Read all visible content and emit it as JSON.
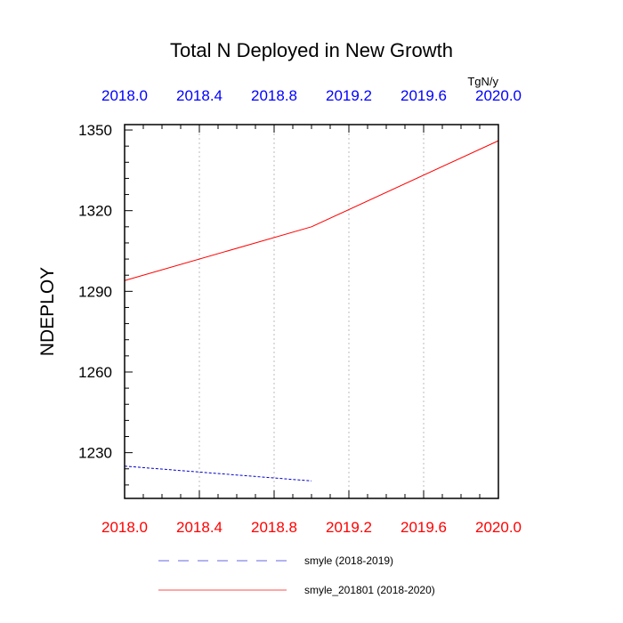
{
  "chart_data": {
    "type": "line",
    "title": "Total N Deployed in New Growth",
    "units": "TgN/y",
    "ylabel": "NDEPLOY",
    "xlim": [
      2018.0,
      2020.0
    ],
    "ylim": [
      1213,
      1352
    ],
    "x_ticks": [
      "2018.0",
      "2018.4",
      "2018.8",
      "2019.2",
      "2019.6",
      "2020.0"
    ],
    "y_ticks": [
      1230,
      1260,
      1290,
      1320,
      1350
    ],
    "y_minor_step": 6,
    "x_minor_step": 0.1,
    "grid": "vertical-dotted",
    "colors": {
      "top_axis": "#0000ff",
      "bottom_axis": "#ff0000"
    },
    "series": [
      {
        "name": "smyle (2018-2019)",
        "color": "#0000cc",
        "dash": "dashed",
        "x": [
          2018.0,
          2019.0
        ],
        "y": [
          1225,
          1219.5
        ]
      },
      {
        "name": "smyle_201801 (2018-2020)",
        "color": "#ff0000",
        "dash": "solid",
        "x": [
          2018.0,
          2019.0,
          2020.0
        ],
        "y": [
          1294,
          1314,
          1346
        ]
      }
    ]
  }
}
